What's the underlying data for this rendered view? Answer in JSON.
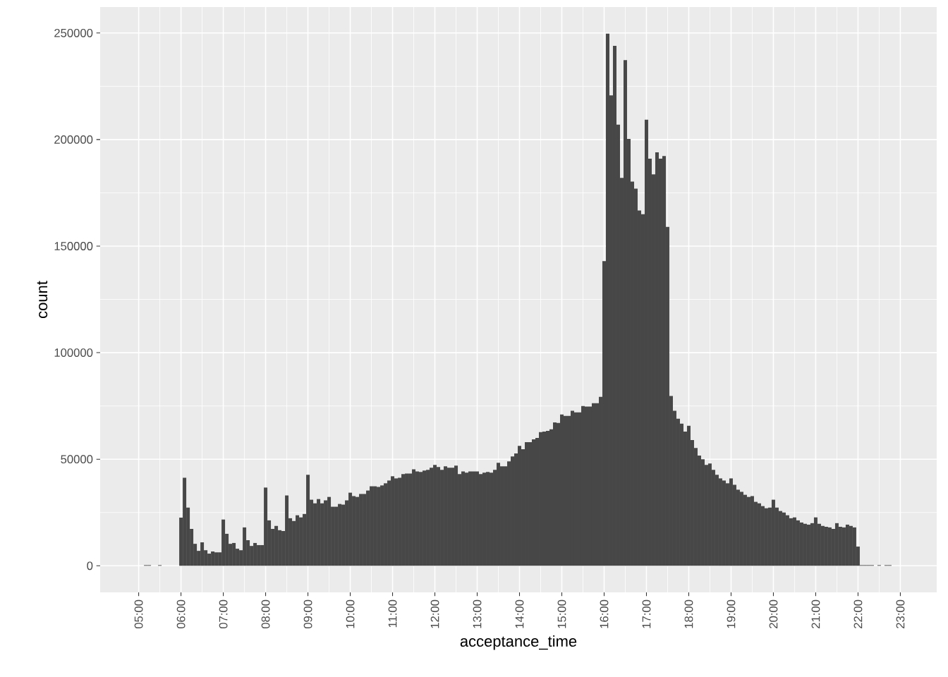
{
  "chart_data": {
    "type": "histogram",
    "xlabel": "acceptance_time",
    "ylabel": "count",
    "color": "#474747",
    "grid": true,
    "xlim": [
      4.09,
      23.86
    ],
    "ylim": [
      -12485,
      262185
    ],
    "xticks": [
      {
        "value": 5,
        "label": "05:00"
      },
      {
        "value": 6,
        "label": "06:00"
      },
      {
        "value": 7,
        "label": "07:00"
      },
      {
        "value": 8,
        "label": "08:00"
      },
      {
        "value": 9,
        "label": "09:00"
      },
      {
        "value": 10,
        "label": "10:00"
      },
      {
        "value": 11,
        "label": "11:00"
      },
      {
        "value": 12,
        "label": "12:00"
      },
      {
        "value": 13,
        "label": "13:00"
      },
      {
        "value": 14,
        "label": "14:00"
      },
      {
        "value": 15,
        "label": "15:00"
      },
      {
        "value": 16,
        "label": "16:00"
      },
      {
        "value": 17,
        "label": "17:00"
      },
      {
        "value": 18,
        "label": "18:00"
      },
      {
        "value": 19,
        "label": "19:00"
      },
      {
        "value": 20,
        "label": "20:00"
      },
      {
        "value": 21,
        "label": "21:00"
      },
      {
        "value": 22,
        "label": "22:00"
      },
      {
        "value": 23,
        "label": "23:00"
      }
    ],
    "yticks": [
      0,
      50000,
      100000,
      150000,
      200000,
      250000
    ],
    "bins": [
      5.125,
      5.20833,
      5.29167,
      5.375,
      5.45833,
      5.54167,
      5.625,
      5.70833,
      5.79167,
      5.875,
      5.95833,
      6.04167,
      6.125,
      6.20833,
      6.29167,
      6.375,
      6.45833,
      6.54167,
      6.625,
      6.70833,
      6.79167,
      6.875,
      6.95833,
      7.04167,
      7.125,
      7.20833,
      7.29167,
      7.375,
      7.45833,
      7.54167,
      7.625,
      7.70833,
      7.79167,
      7.875,
      7.95833,
      8.04167,
      8.125,
      8.20833,
      8.29167,
      8.375,
      8.45833,
      8.54167,
      8.625,
      8.70833,
      8.79167,
      8.875,
      8.95833,
      9.04167,
      9.125,
      9.20833,
      9.29167,
      9.375,
      9.45833,
      9.54167,
      9.625,
      9.70833,
      9.79167,
      9.875,
      9.95833,
      10.04167,
      10.125,
      10.20833,
      10.29167,
      10.375,
      10.45833,
      10.54167,
      10.625,
      10.70833,
      10.79167,
      10.875,
      10.95833,
      11.04167,
      11.125,
      11.20833,
      11.29167,
      11.375,
      11.45833,
      11.54167,
      11.625,
      11.70833,
      11.79167,
      11.875,
      11.95833,
      12.04167,
      12.125,
      12.20833,
      12.29167,
      12.375,
      12.45833,
      12.54167,
      12.625,
      12.70833,
      12.79167,
      12.875,
      12.95833,
      13.04167,
      13.125,
      13.20833,
      13.29167,
      13.375,
      13.45833,
      13.54167,
      13.625,
      13.70833,
      13.79167,
      13.875,
      13.95833,
      14.04167,
      14.125,
      14.20833,
      14.29167,
      14.375,
      14.45833,
      14.54167,
      14.625,
      14.70833,
      14.79167,
      14.875,
      14.95833,
      15.04167,
      15.125,
      15.20833,
      15.29167,
      15.375,
      15.45833,
      15.54167,
      15.625,
      15.70833,
      15.79167,
      15.875,
      15.95833,
      16.04167,
      16.125,
      16.20833,
      16.29167,
      16.375,
      16.45833,
      16.54167,
      16.625,
      16.70833,
      16.79167,
      16.875,
      16.95833,
      17.04167,
      17.125,
      17.20833,
      17.29167,
      17.375,
      17.45833,
      17.54167,
      17.625,
      17.70833,
      17.79167,
      17.875,
      17.95833,
      18.04167,
      18.125,
      18.20833,
      18.29167,
      18.375,
      18.45833,
      18.54167,
      18.625,
      18.70833,
      18.79167,
      18.875,
      18.95833,
      19.04167,
      19.125,
      19.20833,
      19.29167,
      19.375,
      19.45833,
      19.54167,
      19.625,
      19.70833,
      19.79167,
      19.875,
      19.95833,
      20.04167,
      20.125,
      20.20833,
      20.29167,
      20.375,
      20.45833,
      20.54167,
      20.625,
      20.70833,
      20.79167,
      20.875,
      20.95833,
      21.04167,
      21.125,
      21.20833,
      21.29167,
      21.375,
      21.45833,
      21.54167,
      21.625,
      21.70833,
      21.79167,
      21.875,
      21.95833,
      22.04167,
      22.125,
      22.20833,
      22.29167,
      22.375,
      22.45833,
      22.54167,
      22.625,
      22.70833,
      22.79167
    ],
    "values": [
      300,
      300,
      null,
      null,
      300,
      null,
      null,
      null,
      null,
      null,
      22600,
      41300,
      27300,
      17300,
      10300,
      7000,
      11000,
      7300,
      5700,
      6700,
      6300,
      6300,
      21700,
      15000,
      10300,
      10700,
      8000,
      7300,
      18000,
      12000,
      9300,
      10700,
      9700,
      9700,
      36700,
      21300,
      17300,
      18700,
      16700,
      16300,
      33000,
      22300,
      21000,
      23700,
      22700,
      24300,
      42700,
      31000,
      29300,
      31300,
      29300,
      30700,
      32300,
      27700,
      27700,
      29000,
      28700,
      30700,
      34300,
      32700,
      32300,
      33700,
      33700,
      35300,
      37300,
      37300,
      37000,
      37700,
      38700,
      40000,
      42000,
      41000,
      41300,
      43000,
      43300,
      43300,
      45300,
      44300,
      44000,
      44700,
      45000,
      46000,
      47300,
      46300,
      45000,
      46700,
      46000,
      46000,
      47000,
      43000,
      44300,
      43700,
      44300,
      44300,
      44300,
      43000,
      43700,
      44000,
      43700,
      45000,
      48300,
      46700,
      46700,
      49000,
      51300,
      52700,
      56300,
      54700,
      58000,
      58000,
      59300,
      60000,
      62700,
      63000,
      63300,
      64000,
      67300,
      67000,
      71000,
      70300,
      70300,
      72700,
      72000,
      72000,
      75000,
      74700,
      74700,
      76300,
      76300,
      79300,
      143000,
      249700,
      220700,
      244000,
      207000,
      182000,
      237300,
      200300,
      180300,
      177000,
      166700,
      165000,
      209300,
      191000,
      183700,
      194000,
      191000,
      192300,
      159000,
      79700,
      72700,
      69000,
      66700,
      63000,
      65700,
      59000,
      55300,
      51700,
      50000,
      47300,
      48000,
      45000,
      42700,
      41000,
      40000,
      38700,
      41000,
      38000,
      35700,
      34700,
      33300,
      32300,
      32700,
      30000,
      29300,
      28000,
      27000,
      27300,
      31000,
      27300,
      25700,
      25000,
      23700,
      22300,
      22700,
      21300,
      20300,
      19700,
      19300,
      20000,
      22700,
      19700,
      18700,
      18300,
      18000,
      17300,
      20000,
      18300,
      18000,
      19300,
      18700,
      18000,
      9000,
      300,
      300,
      300,
      300,
      null,
      300,
      null,
      300,
      300
    ]
  }
}
